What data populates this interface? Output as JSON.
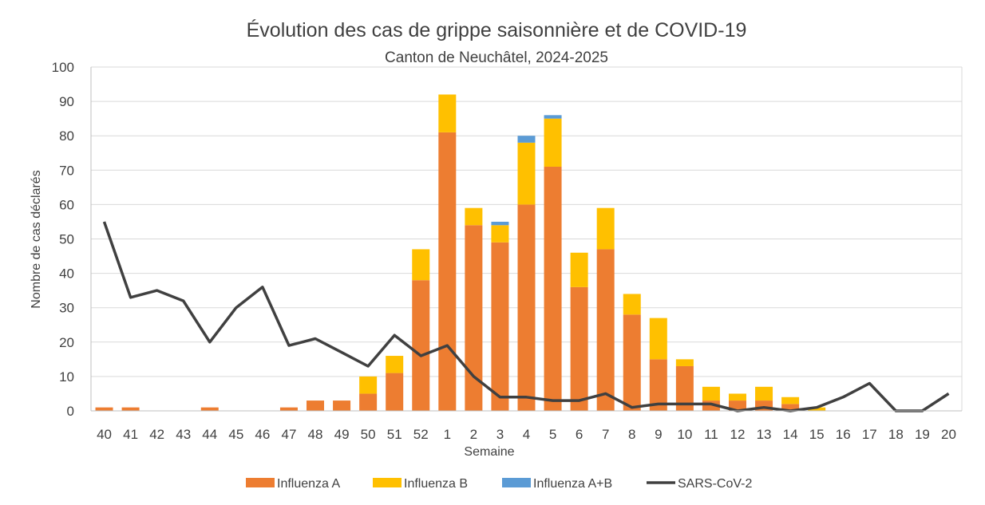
{
  "chart_data": {
    "type": "bar",
    "title": "Évolution des cas de grippe saisonnière et de COVID-19",
    "subtitle": "Canton de Neuchâtel, 2024-2025",
    "xlabel": "Semaine",
    "ylabel": "Nombre de cas déclarés",
    "ylim": [
      0,
      100
    ],
    "yticks": [
      0,
      10,
      20,
      30,
      40,
      50,
      60,
      70,
      80,
      90,
      100
    ],
    "grid": true,
    "legend": "bottom",
    "stacked": true,
    "categories": [
      "40",
      "41",
      "42",
      "43",
      "44",
      "45",
      "46",
      "47",
      "48",
      "49",
      "50",
      "51",
      "52",
      "1",
      "2",
      "3",
      "4",
      "5",
      "6",
      "7",
      "8",
      "9",
      "10",
      "11",
      "12",
      "13",
      "14",
      "15",
      "16",
      "17",
      "18",
      "19",
      "20"
    ],
    "series": [
      {
        "name": "Influenza A",
        "type": "bar",
        "color": "#ed7d31",
        "values": [
          1,
          1,
          0,
          0,
          1,
          0,
          0,
          1,
          3,
          3,
          5,
          11,
          38,
          81,
          54,
          49,
          60,
          71,
          36,
          47,
          28,
          15,
          13,
          3,
          3,
          3,
          2,
          0,
          0,
          0,
          0,
          0,
          0
        ]
      },
      {
        "name": "Influenza B",
        "type": "bar",
        "color": "#ffc000",
        "values": [
          0,
          0,
          0,
          0,
          0,
          0,
          0,
          0,
          0,
          0,
          5,
          5,
          9,
          11,
          5,
          5,
          18,
          14,
          10,
          12,
          6,
          12,
          2,
          4,
          2,
          4,
          2,
          1,
          0,
          0,
          0,
          0,
          0
        ]
      },
      {
        "name": "Influenza A+B",
        "type": "bar",
        "color": "#5b9bd5",
        "values": [
          0,
          0,
          0,
          0,
          0,
          0,
          0,
          0,
          0,
          0,
          0,
          0,
          0,
          0,
          0,
          1,
          2,
          1,
          0,
          0,
          0,
          0,
          0,
          0,
          0,
          0,
          0,
          0,
          0,
          0,
          0,
          0,
          0
        ]
      },
      {
        "name": "SARS-CoV-2",
        "type": "line",
        "color": "#404040",
        "values": [
          55,
          33,
          35,
          32,
          20,
          30,
          36,
          19,
          21,
          17,
          13,
          22,
          16,
          19,
          10,
          4,
          4,
          3,
          3,
          5,
          1,
          2,
          2,
          2,
          0,
          1,
          0,
          1,
          4,
          8,
          0,
          0,
          5
        ]
      }
    ]
  }
}
